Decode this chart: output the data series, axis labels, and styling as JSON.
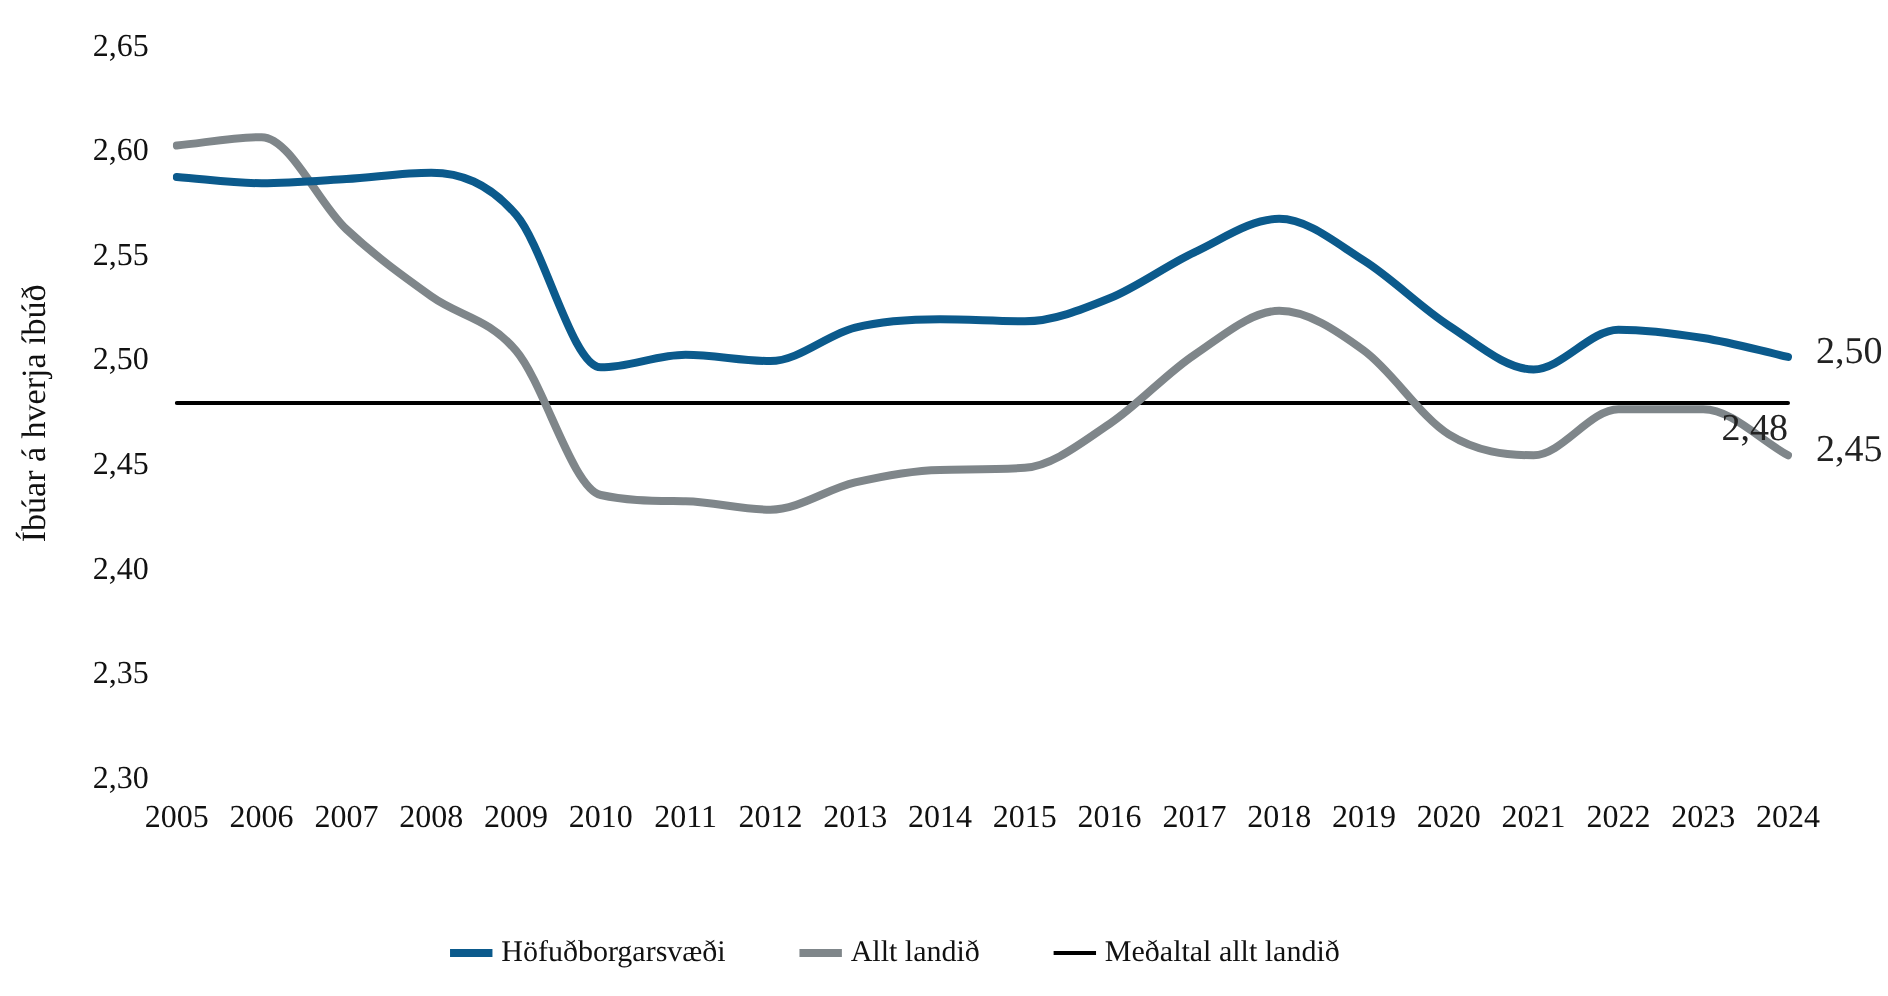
{
  "chart_data": {
    "type": "line",
    "ylabel": "Íbúar á hverja íbúð",
    "categories": [
      "2005",
      "2006",
      "2007",
      "2008",
      "2009",
      "2010",
      "2011",
      "2012",
      "2013",
      "2014",
      "2015",
      "2016",
      "2017",
      "2018",
      "2019",
      "2020",
      "2021",
      "2022",
      "2023",
      "2024"
    ],
    "series": [
      {
        "name": "Höfuðborgarsvæði",
        "color": "#0b5a8c",
        "values": [
          2.588,
          2.585,
          2.587,
          2.59,
          2.57,
          2.497,
          2.503,
          2.5,
          2.516,
          2.52,
          2.519,
          2.53,
          2.552,
          2.568,
          2.548,
          2.517,
          2.496,
          2.515,
          2.511,
          2.502
        ],
        "value_labels": [
          null,
          null,
          null,
          null,
          null,
          null,
          null,
          null,
          null,
          null,
          null,
          null,
          null,
          null,
          null,
          null,
          null,
          null,
          null,
          "2,50"
        ]
      },
      {
        "name": "Allt landið",
        "color": "#7f868a",
        "values": [
          2.603,
          2.607,
          2.563,
          2.531,
          2.505,
          2.436,
          2.433,
          2.429,
          2.442,
          2.448,
          2.449,
          2.47,
          2.503,
          2.524,
          2.505,
          2.465,
          2.455,
          2.477,
          2.477,
          2.455
        ],
        "value_labels": [
          null,
          null,
          null,
          null,
          null,
          null,
          null,
          null,
          null,
          null,
          null,
          null,
          null,
          null,
          null,
          null,
          null,
          null,
          null,
          "2,45"
        ]
      },
      {
        "name": "Meðaltal allt landið",
        "color": "#000000",
        "values": [
          2.48,
          2.48,
          2.48,
          2.48,
          2.48,
          2.48,
          2.48,
          2.48,
          2.48,
          2.48,
          2.48,
          2.48,
          2.48,
          2.48,
          2.48,
          2.48,
          2.48,
          2.48,
          2.48,
          2.48
        ]
      }
    ],
    "annotations": [
      {
        "text": "2,48",
        "x": "2024",
        "y": 2.48
      }
    ],
    "ylim": [
      2.3,
      2.65
    ],
    "yticks": [
      {
        "value": 2.3,
        "label": "2,30"
      },
      {
        "value": 2.35,
        "label": "2,35"
      },
      {
        "value": 2.4,
        "label": "2,40"
      },
      {
        "value": 2.45,
        "label": "2,45"
      },
      {
        "value": 2.5,
        "label": "2,50"
      },
      {
        "value": 2.55,
        "label": "2,55"
      },
      {
        "value": 2.6,
        "label": "2,60"
      },
      {
        "value": 2.65,
        "label": "2,65"
      }
    ],
    "grid": false,
    "legend": "bottom",
    "marker": "none",
    "line_style": "solid"
  }
}
